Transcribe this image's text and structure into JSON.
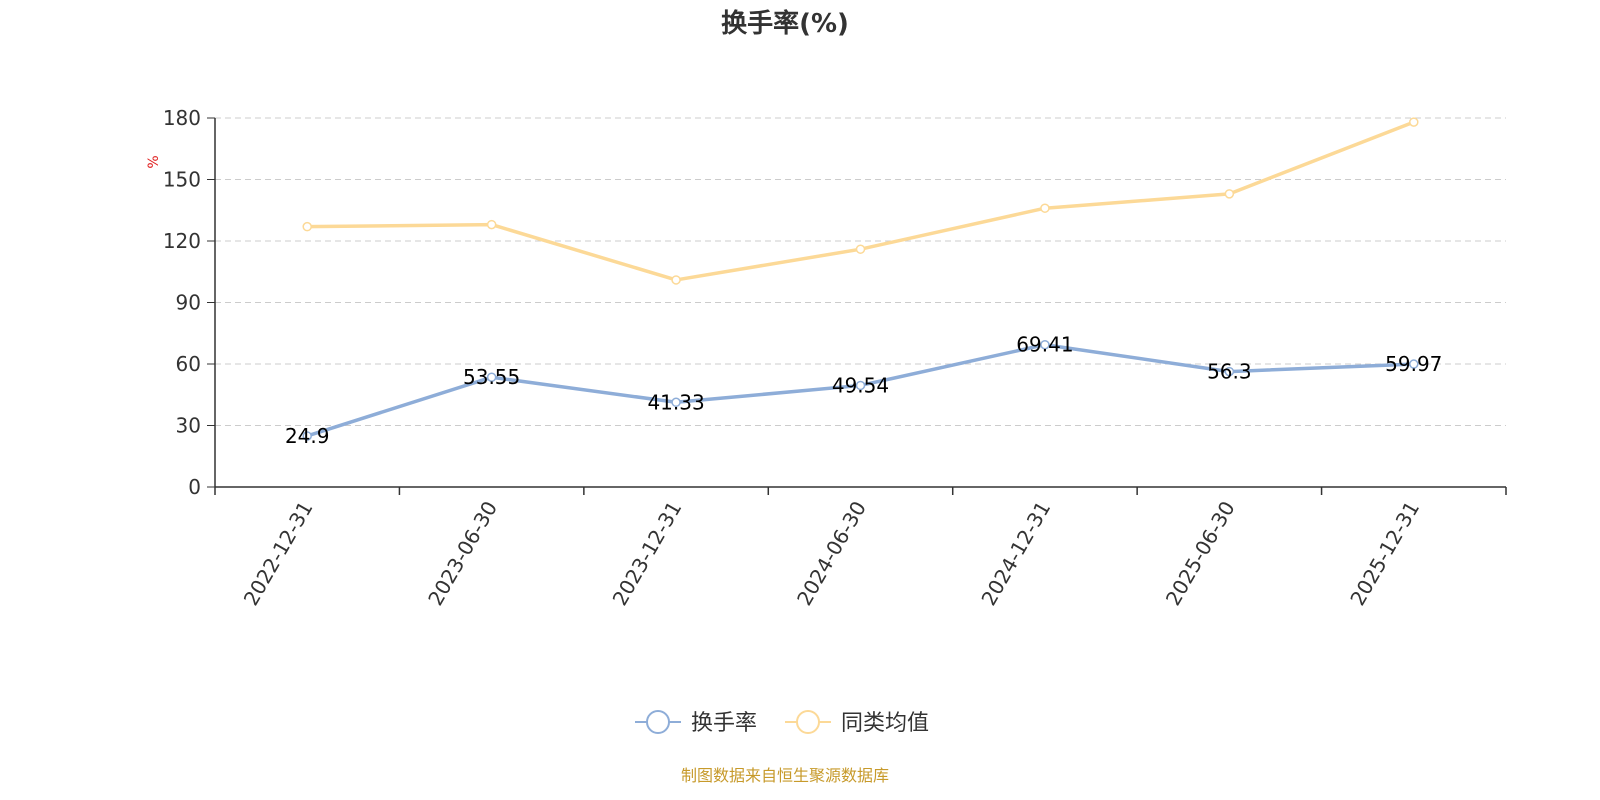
{
  "chart_data": {
    "type": "line",
    "title": "换手率(%)",
    "ylabel": "%",
    "xlabel": "",
    "categories": [
      "2022-12-31",
      "2023-06-30",
      "2023-12-31",
      "2024-06-30",
      "2024-12-31",
      "2025-06-30",
      "2025-12-31"
    ],
    "series": [
      {
        "name": "换手率",
        "color": "#8eadd8",
        "values": [
          24.9,
          53.55,
          41.33,
          49.54,
          69.41,
          56.3,
          59.97
        ],
        "labels": [
          "24.9",
          "53.55",
          "41.33",
          "49.54",
          "69.41",
          "56.3",
          "59.97"
        ],
        "show_labels": true
      },
      {
        "name": "同类均值",
        "color": "#fcd997",
        "values": [
          127,
          128,
          101,
          116,
          136,
          143,
          178
        ],
        "show_labels": false
      }
    ],
    "ylim": [
      0,
      180
    ],
    "yticks": [
      "0",
      "30",
      "60",
      "90",
      "120",
      "150",
      "180"
    ],
    "grid": true,
    "legend_position": "bottom-center"
  },
  "footer": {
    "source": "制图数据来自恒生聚源数据库"
  },
  "colors": {
    "axis": "#333333",
    "grid": "#cccccc",
    "unit": "#e02020",
    "source": "#c79a2b"
  }
}
